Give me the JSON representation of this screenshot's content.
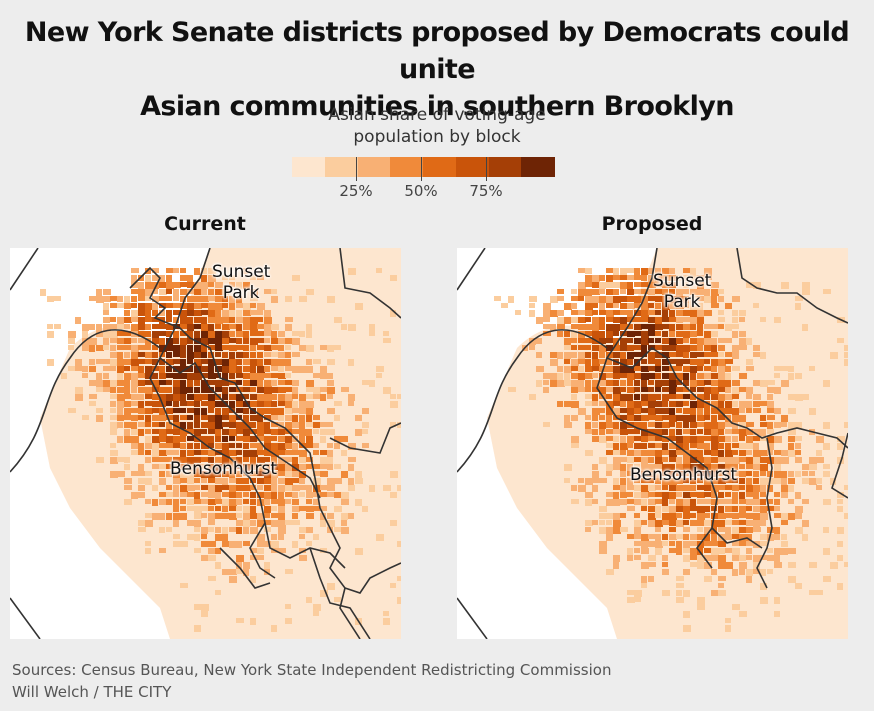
{
  "title": {
    "line1": "New York Senate districts proposed by Democrats could unite",
    "line2": "Asian communities in southern Brooklyn"
  },
  "legend": {
    "title_line1": "Asian share of voting-age",
    "title_line2": "population by block",
    "colors": [
      "#fde6cf",
      "#fbcd9e",
      "#f8b074",
      "#f08a3a",
      "#e06a16",
      "#c9540a",
      "#a53f06",
      "#6e2405"
    ],
    "ticks": [
      {
        "label": "25%",
        "value": 0.25
      },
      {
        "label": "50%",
        "value": 0.5
      },
      {
        "label": "75%",
        "value": 0.75
      }
    ]
  },
  "maps": [
    {
      "id": "current",
      "title": "Current",
      "labels": {
        "sunset_park_line1": "Sunset",
        "sunset_park_line2": "Park",
        "bensonhurst": "Bensonhurst"
      }
    },
    {
      "id": "proposed",
      "title": "Proposed",
      "labels": {
        "sunset_park_line1": "Sunset",
        "sunset_park_line2": "Park",
        "bensonhurst": "Bensonhurst"
      }
    }
  ],
  "footer": {
    "sources": "Sources: Census Bureau, New York State Independent Redistricting Commission",
    "credit": "Will Welch / THE CITY"
  }
}
